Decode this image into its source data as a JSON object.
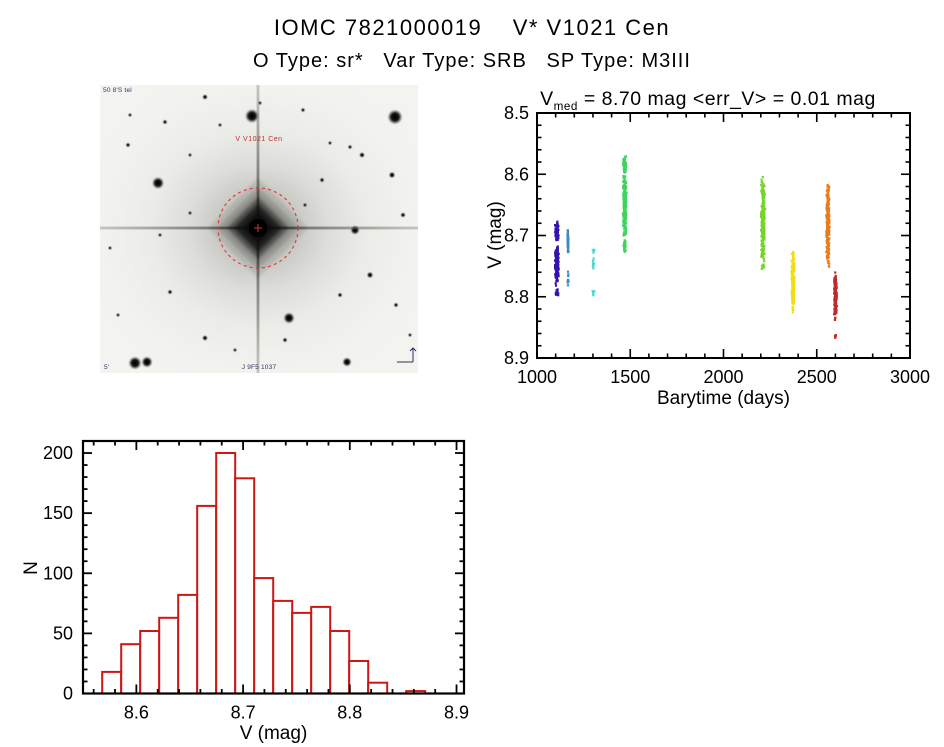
{
  "header": {
    "title": "IOMC 7821000019    V* V1021 Cen",
    "subtitle": "O Type: sr*   Var Type: SRB   SP Type: M3III"
  },
  "finding_chart": {
    "target_label": "V V1021 Cen",
    "corner_text_top_left": "50 8'S tel",
    "corner_text_bottom": "J 9F5 1037",
    "corner_text_bottom_left": "5'",
    "circle_color": "#e23333",
    "stars": [
      [
        152,
        31,
        7
      ],
      [
        295,
        32,
        7.5
      ],
      [
        58,
        98,
        6
      ],
      [
        255,
        145,
        4.5
      ],
      [
        189,
        233,
        5.5
      ],
      [
        35,
        278,
        6.5
      ],
      [
        47,
        277,
        5.5
      ],
      [
        247,
        277,
        4.5
      ],
      [
        105,
        12,
        2.5
      ],
      [
        203,
        25,
        2
      ],
      [
        28,
        60,
        2.2
      ],
      [
        90,
        70,
        1.8
      ],
      [
        262,
        70,
        2.6
      ],
      [
        292,
        90,
        3
      ],
      [
        222,
        95,
        2.2
      ],
      [
        70,
        207,
        2.2
      ],
      [
        105,
        253,
        2.6
      ],
      [
        10,
        163,
        1.8
      ],
      [
        303,
        130,
        2.4
      ],
      [
        270,
        190,
        3
      ],
      [
        240,
        210,
        2.2
      ],
      [
        135,
        265,
        1.8
      ],
      [
        30,
        30,
        1.8
      ],
      [
        65,
        37,
        2.2
      ],
      [
        230,
        58,
        1.8
      ],
      [
        296,
        220,
        2.2
      ],
      [
        185,
        255,
        2.2
      ],
      [
        60,
        150,
        1.8
      ],
      [
        18,
        230,
        1.8
      ],
      [
        310,
        250,
        1.8
      ],
      [
        120,
        40,
        1.8
      ],
      [
        250,
        62,
        2
      ],
      [
        160,
        18,
        1.8
      ],
      [
        205,
        120,
        1.9
      ],
      [
        90,
        128,
        1.8
      ]
    ]
  },
  "chart_data": [
    {
      "id": "lightcurve",
      "type": "scatter",
      "title_var": "V",
      "title_sub": "med",
      "title_rest": " = 8.70 mag <err_V> = 0.01 mag",
      "xlabel": "Barytime (days)",
      "ylabel": "V (mag)",
      "xlim": [
        1000,
        3000
      ],
      "ylim": [
        8.5,
        8.9
      ],
      "y_axis_reversed_magnitudes": true,
      "xticks": [
        1000,
        1500,
        2000,
        2500,
        3000
      ],
      "yticks": [
        8.5,
        8.6,
        8.7,
        8.8,
        8.9
      ],
      "x_minor": 100,
      "y_minor": 0.02,
      "clusters": [
        {
          "t": 1107,
          "dt": 11,
          "n": 70,
          "v": [
            8.675,
            8.712
          ],
          "color": "#3513af"
        },
        {
          "t": 1107,
          "dt": 11,
          "n": 170,
          "v": [
            8.715,
            8.786
          ],
          "color": "#3513af"
        },
        {
          "t": 1107,
          "dt": 9,
          "n": 18,
          "v": [
            8.786,
            8.801
          ],
          "color": "#3513af"
        },
        {
          "t": 1166,
          "dt": 3,
          "n": 70,
          "v": [
            8.688,
            8.73
          ],
          "color": "#3f8dbd"
        },
        {
          "t": 1166,
          "dt": 3,
          "n": 10,
          "v": [
            8.748,
            8.79
          ],
          "color": "#3f8dbd"
        },
        {
          "t": 1303,
          "dt": 5,
          "n": 6,
          "v": [
            8.718,
            8.73
          ],
          "color": "#4edad0"
        },
        {
          "t": 1303,
          "dt": 5,
          "n": 10,
          "v": [
            8.733,
            8.755
          ],
          "color": "#4edad0"
        },
        {
          "t": 1303,
          "dt": 5,
          "n": 7,
          "v": [
            8.785,
            8.801
          ],
          "color": "#4edad0"
        },
        {
          "t": 1470,
          "dt": 9,
          "n": 60,
          "v": [
            8.567,
            8.6
          ],
          "color": "#3fd45f"
        },
        {
          "t": 1470,
          "dt": 10,
          "n": 260,
          "v": [
            8.598,
            8.705
          ],
          "color": "#3fd45f"
        },
        {
          "t": 1470,
          "dt": 8,
          "n": 30,
          "v": [
            8.705,
            8.728
          ],
          "color": "#3fd45f"
        },
        {
          "t": 2212,
          "dt": 11,
          "n": 280,
          "v": [
            8.601,
            8.746
          ],
          "color": "#74d627"
        },
        {
          "t": 2212,
          "dt": 8,
          "n": 14,
          "v": [
            8.746,
            8.758
          ],
          "color": "#74d627"
        },
        {
          "t": 2373,
          "dt": 9,
          "n": 190,
          "v": [
            8.722,
            8.831
          ],
          "color": "#f2de10"
        },
        {
          "t": 2560,
          "dt": 10,
          "n": 250,
          "v": [
            8.606,
            8.757
          ],
          "color": "#e87c20"
        },
        {
          "t": 2600,
          "dt": 8,
          "n": 160,
          "v": [
            8.757,
            8.845
          ],
          "color": "#c1282c"
        },
        {
          "t": 2601,
          "dt": 4,
          "n": 6,
          "v": [
            8.856,
            8.875
          ],
          "color": "#c1282c"
        }
      ]
    },
    {
      "id": "histogram",
      "type": "bar",
      "xlabel": "V (mag)",
      "ylabel": "N",
      "color": "#cc1714",
      "bin_start": 8.568,
      "bin_width": 0.0178,
      "counts": [
        18,
        41,
        52,
        63,
        82,
        156,
        200,
        179,
        96,
        77,
        67,
        72,
        52,
        27,
        9,
        0,
        2
      ],
      "xticks": [
        8.6,
        8.7,
        8.8,
        8.9
      ],
      "yticks": [
        0,
        50,
        100,
        150,
        200
      ],
      "x_minor": 0.02,
      "y_minor": 10,
      "xlim": [
        8.55,
        8.907
      ],
      "ylim": [
        0,
        210
      ]
    }
  ]
}
